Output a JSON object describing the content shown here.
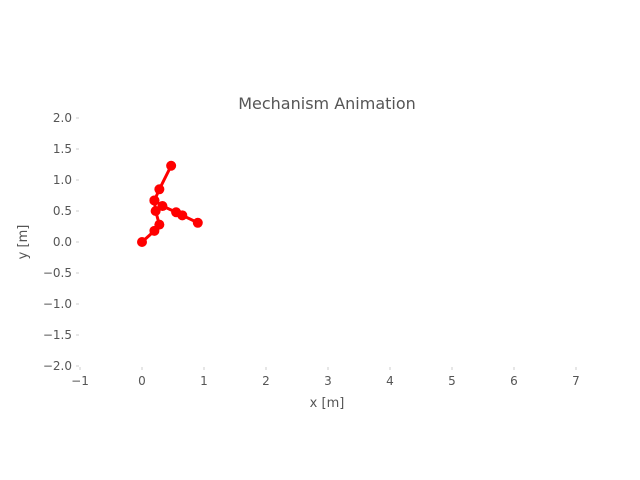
{
  "chart_data": {
    "type": "line",
    "title": "Mechanism Animation",
    "xlabel": "x [m]",
    "ylabel": "y [m]",
    "xlim": [
      -1,
      7
    ],
    "ylim": [
      -2.0,
      2.0
    ],
    "x_ticks": [
      -1,
      0,
      1,
      2,
      3,
      4,
      5,
      6,
      7
    ],
    "y_ticks": [
      2.0,
      1.5,
      1.0,
      0.5,
      0.0,
      -0.5,
      -1.0,
      -1.5,
      -2.0
    ],
    "x_tick_labels": [
      "−1",
      "0",
      "1",
      "2",
      "3",
      "4",
      "5",
      "6",
      "7"
    ],
    "y_tick_labels": [
      "2.0",
      "1.5",
      "1.0",
      "0.5",
      "0.0",
      "−0.5",
      "−1.0",
      "−1.5",
      "−2.0"
    ],
    "grid": false,
    "series": [
      {
        "color": "#ff0000",
        "segments": [
          [
            [
              0.0,
              0.0
            ],
            [
              0.2,
              0.18
            ],
            [
              0.28,
              0.28
            ],
            [
              0.22,
              0.5
            ],
            [
              0.2,
              0.67
            ],
            [
              0.28,
              0.85
            ],
            [
              0.47,
              1.23
            ]
          ],
          [
            [
              0.2,
              0.67
            ],
            [
              0.33,
              0.58
            ],
            [
              0.55,
              0.48
            ],
            [
              0.65,
              0.43
            ],
            [
              0.9,
              0.31
            ]
          ]
        ]
      }
    ]
  }
}
